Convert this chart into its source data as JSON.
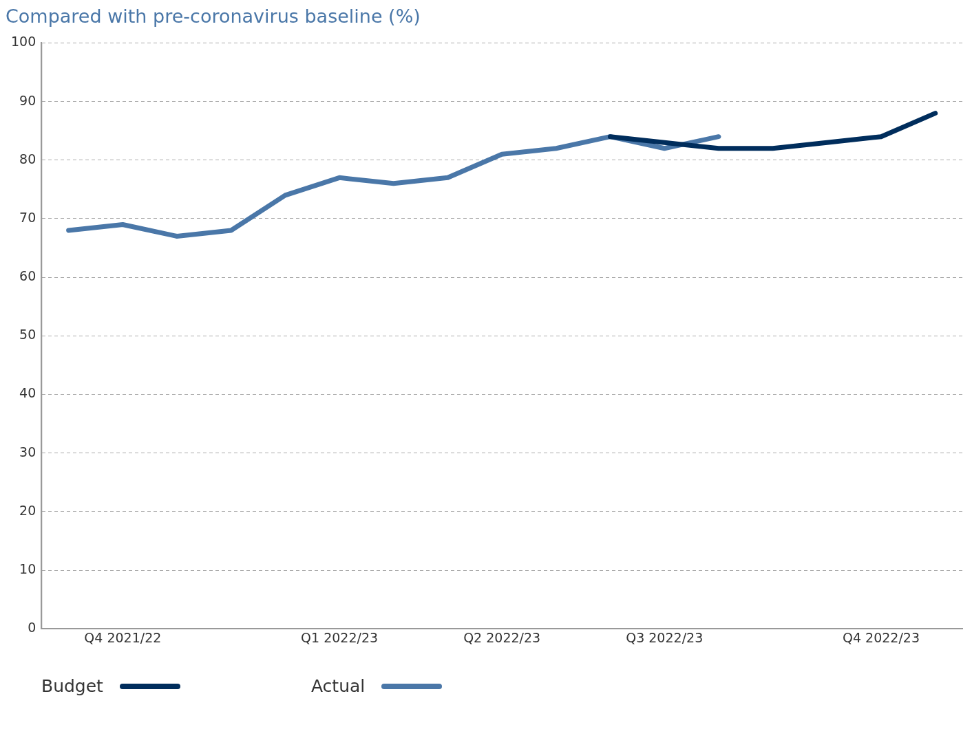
{
  "chart_data": {
    "type": "line",
    "title": "Compared with pre-coronavirus baseline (%)",
    "categories": [
      null,
      "Q4 2021/22",
      null,
      null,
      null,
      "Q1 2022/23",
      null,
      null,
      "Q2 2022/23",
      null,
      null,
      "Q3 2022/23",
      null,
      null,
      null,
      "Q4 2022/23",
      null
    ],
    "series": [
      {
        "name": "Budget",
        "color": "#002d5c",
        "values": [
          null,
          null,
          null,
          null,
          null,
          null,
          null,
          null,
          null,
          null,
          84,
          83,
          82,
          82,
          83,
          84,
          88
        ]
      },
      {
        "name": "Actual",
        "color": "#4a77a8",
        "values": [
          68,
          69,
          67,
          68,
          74,
          77,
          76,
          77,
          81,
          82,
          84,
          82,
          84,
          null,
          null,
          null,
          null
        ]
      }
    ],
    "ylim": [
      0,
      100
    ],
    "yticks": [
      0,
      10,
      20,
      30,
      40,
      50,
      60,
      70,
      80,
      90,
      100
    ],
    "grid": "y",
    "legend": "bottom left",
    "marker": "none",
    "line_style": "solid"
  }
}
